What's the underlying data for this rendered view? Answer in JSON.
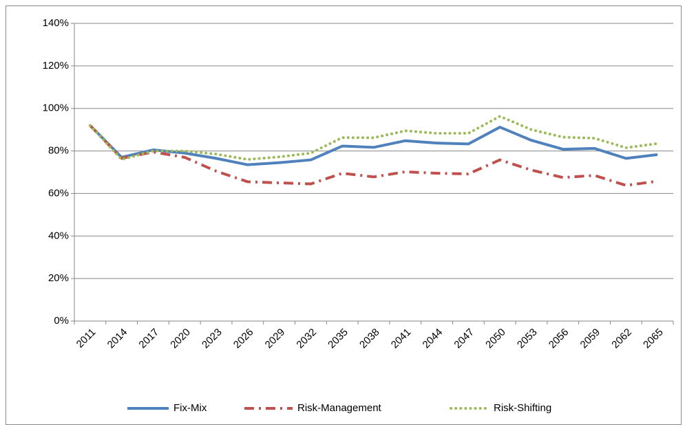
{
  "chart_data": {
    "type": "line",
    "categories": [
      "2011",
      "2014",
      "2017",
      "2020",
      "2023",
      "2026",
      "2029",
      "2032",
      "2035",
      "2038",
      "2041",
      "2044",
      "2047",
      "2050",
      "2053",
      "2056",
      "2059",
      "2062",
      "2065"
    ],
    "series": [
      {
        "name": "Fix-Mix",
        "color": "#4f81bd",
        "dash": "solid",
        "values": [
          92,
          77,
          80.5,
          79,
          76.5,
          73.5,
          74.5,
          75.8,
          82.3,
          81.7,
          84.8,
          83.7,
          83.3,
          91.2,
          85,
          80.8,
          81.2,
          76.5,
          78.3
        ]
      },
      {
        "name": "Risk-Management",
        "color": "#c0504d",
        "dash": "dashdot",
        "values": [
          92,
          76.5,
          79.5,
          77,
          70.5,
          65.5,
          65,
          64.5,
          69.5,
          67.8,
          70.2,
          69.5,
          69.2,
          75.8,
          71,
          67.5,
          68.5,
          63.8,
          65.8
        ]
      },
      {
        "name": "Risk-Shifting",
        "color": "#9bbb59",
        "dash": "dot",
        "values": [
          92,
          76,
          80,
          80,
          78.5,
          76,
          77.2,
          79,
          86.3,
          86.2,
          89.5,
          88.3,
          88.3,
          96.3,
          90,
          86.5,
          86,
          81.5,
          83.5
        ]
      }
    ],
    "ylim": [
      0,
      140
    ],
    "yticks": [
      {
        "value": 0,
        "label": "0%"
      },
      {
        "value": 20,
        "label": "20%"
      },
      {
        "value": 40,
        "label": "40%"
      },
      {
        "value": 60,
        "label": "60%"
      },
      {
        "value": 80,
        "label": "80%"
      },
      {
        "value": 100,
        "label": "100%"
      },
      {
        "value": 120,
        "label": "120%"
      },
      {
        "value": 140,
        "label": "140%"
      }
    ],
    "grid": true,
    "legend": "bottom"
  }
}
